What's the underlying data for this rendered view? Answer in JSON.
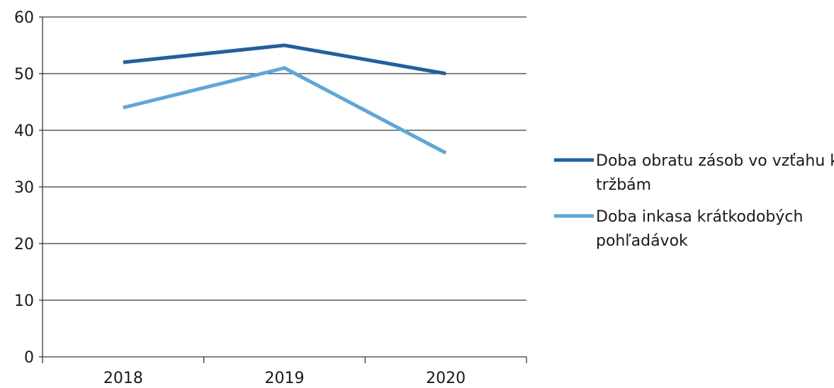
{
  "chart_data": {
    "type": "line",
    "categories": [
      "2018",
      "2019",
      "2020"
    ],
    "series": [
      {
        "name": "Doba obratu zásob vo vzťahu k tržbám",
        "name_lines": [
          "Doba obratu zásob vo vzťahu k",
          "tržbám"
        ],
        "values": [
          52,
          55,
          50
        ],
        "color": "#1f5fa6"
      },
      {
        "name": "Doba inkasa krátkodobých pohľadávok",
        "name_lines": [
          "Doba inkasa krátkodobých",
          "pohľadávok"
        ],
        "values": [
          44,
          51,
          36
        ],
        "color": "#5aa8dc"
      }
    ],
    "yticks": [
      "0",
      "10",
      "20",
      "30",
      "40",
      "50",
      "60"
    ],
    "ylim": [
      0,
      60
    ],
    "grid": true,
    "legend": "right",
    "title": "",
    "xlabel": "",
    "ylabel": ""
  }
}
